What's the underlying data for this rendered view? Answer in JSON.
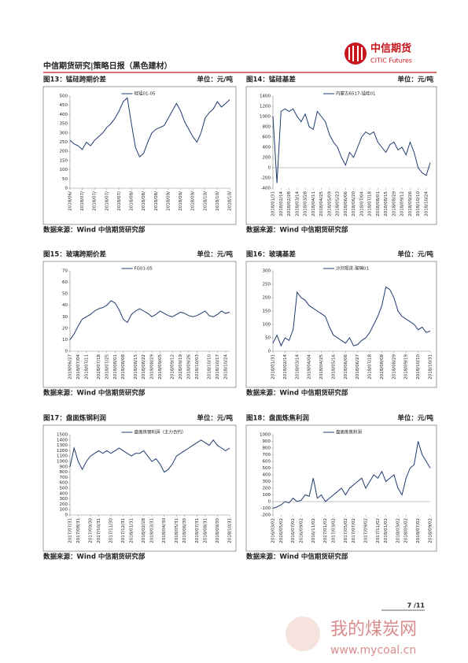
{
  "header": {
    "title": "中信期货研究|策略日报（黑色建材）",
    "logo_cn": "中信期货",
    "logo_en": "CITIC Futures"
  },
  "page_number": "7 /11",
  "watermark": {
    "name": "我的煤炭网",
    "url": "www.mycoal.cn"
  },
  "chart_data": [
    {
      "type": "line",
      "title": "图13：锰硅跨期价差",
      "unit": "单位：元/吨",
      "source": "数据来源：Wind  中信期货研究部",
      "series": [
        {
          "name": "硅锰01-05",
          "color": "#1f3a6e",
          "values": [
            260,
            240,
            230,
            210,
            250,
            230,
            260,
            280,
            300,
            330,
            350,
            380,
            420,
            470,
            490,
            350,
            220,
            170,
            190,
            250,
            300,
            320,
            330,
            340,
            380,
            420,
            460,
            420,
            360,
            320,
            280,
            250,
            300,
            380,
            410,
            430,
            470,
            440,
            460,
            480
          ]
        }
      ],
      "ylim": [
        0,
        500
      ],
      "yticks": [
        0,
        50,
        100,
        150,
        200,
        250,
        300,
        350,
        400,
        450,
        500
      ],
      "xlim": [
        0,
        39
      ],
      "xticks": [
        {
          "value": 0,
          "label": "2018/06/"
        },
        {
          "value": 3,
          "label": "2018/07/"
        },
        {
          "value": 6,
          "label": "2018/07/"
        },
        {
          "value": 9,
          "label": "2018/07/"
        },
        {
          "value": 12,
          "label": "2018/07/"
        },
        {
          "value": 15,
          "label": "2018/08/"
        },
        {
          "value": 18,
          "label": "2018/08/"
        },
        {
          "value": 21,
          "label": "2018/08/"
        },
        {
          "value": 24,
          "label": "2018/09/"
        },
        {
          "value": 27,
          "label": "2018/09/"
        },
        {
          "value": 30,
          "label": "2018/09/"
        },
        {
          "value": 33,
          "label": "2018/10/"
        },
        {
          "value": 36,
          "label": "2018/10/"
        },
        {
          "value": 39,
          "label": "2018/10/"
        }
      ]
    },
    {
      "type": "line",
      "title": "图14：锰硅基差",
      "unit": "单位：元/吨",
      "source": "数据来源：Wind  中信期货研究部",
      "series": [
        {
          "name": "内蒙古6517-锰硅01",
          "color": "#1f3a6e",
          "values": [
            1000,
            -300,
            1100,
            1150,
            1100,
            1150,
            1000,
            900,
            1050,
            800,
            750,
            1100,
            1000,
            900,
            650,
            500,
            400,
            200,
            50,
            300,
            200,
            400,
            600,
            700,
            650,
            700,
            500,
            400,
            300,
            450,
            500,
            350,
            400,
            250,
            500,
            300,
            0,
            -100,
            -150,
            100
          ]
        }
      ],
      "ylim": [
        -400,
        1400
      ],
      "yticks": [
        -400,
        -200,
        0,
        200,
        400,
        600,
        800,
        1000,
        1200,
        1400
      ],
      "xlim": [
        0,
        39
      ],
      "xticks": [
        {
          "value": 0,
          "label": "2018/01/31"
        },
        {
          "value": 2,
          "label": "2018/02/14"
        },
        {
          "value": 4,
          "label": "2018/02/28"
        },
        {
          "value": 6,
          "label": "2018/03/14"
        },
        {
          "value": 8,
          "label": "2018/03/28"
        },
        {
          "value": 10,
          "label": "2018/04/11"
        },
        {
          "value": 12,
          "label": "2018/04/25"
        },
        {
          "value": 14,
          "label": "2018/05/09"
        },
        {
          "value": 16,
          "label": "2018/05/23"
        },
        {
          "value": 18,
          "label": "2018/06/06"
        },
        {
          "value": 20,
          "label": "2018/06/20"
        },
        {
          "value": 22,
          "label": "2018/07/04"
        },
        {
          "value": 24,
          "label": "2018/07/18"
        },
        {
          "value": 26,
          "label": "2018/08/01"
        },
        {
          "value": 28,
          "label": "2018/08/15"
        },
        {
          "value": 30,
          "label": "2018/08/29"
        },
        {
          "value": 32,
          "label": "2018/09/12"
        },
        {
          "value": 34,
          "label": "2018/09/26"
        },
        {
          "value": 36,
          "label": "2018/10/10"
        },
        {
          "value": 38,
          "label": "2018/10/24"
        }
      ]
    },
    {
      "type": "line",
      "title": "图15：玻璃跨期价差",
      "unit": "单位：元/吨",
      "source": "数据来源：Wind  中信期货研究部",
      "series": [
        {
          "name": "FG01-05",
          "color": "#1f3a6e",
          "values": [
            10,
            15,
            22,
            28,
            30,
            32,
            35,
            37,
            38,
            40,
            44,
            42,
            36,
            28,
            25,
            32,
            35,
            37,
            35,
            33,
            30,
            32,
            35,
            33,
            31,
            30,
            32,
            34,
            33,
            31,
            30,
            31,
            33,
            35,
            31,
            30,
            32,
            35,
            33,
            34
          ]
        }
      ],
      "ylim": [
        0,
        70
      ],
      "yticks": [
        0,
        10,
        20,
        30,
        40,
        50,
        60,
        70
      ],
      "xlim": [
        0,
        39
      ],
      "xticks": [
        {
          "value": 0,
          "label": "2018/06/27"
        },
        {
          "value": 2,
          "label": "2018/07/04"
        },
        {
          "value": 4,
          "label": "2018/07/11"
        },
        {
          "value": 7,
          "label": "2018/07/18"
        },
        {
          "value": 9,
          "label": "2018/07/25"
        },
        {
          "value": 11,
          "label": "2018/08/01"
        },
        {
          "value": 13,
          "label": "2018/08/08"
        },
        {
          "value": 16,
          "label": "2018/08/15"
        },
        {
          "value": 18,
          "label": "2018/08/22"
        },
        {
          "value": 20,
          "label": "2018/08/29"
        },
        {
          "value": 22,
          "label": "2018/09/05"
        },
        {
          "value": 25,
          "label": "2018/09/12"
        },
        {
          "value": 27,
          "label": "2018/09/19"
        },
        {
          "value": 29,
          "label": "2018/09/26"
        },
        {
          "value": 31,
          "label": "2018/10/03"
        },
        {
          "value": 34,
          "label": "2018/10/10"
        },
        {
          "value": 36,
          "label": "2018/10/17"
        },
        {
          "value": 38,
          "label": "2018/10/24"
        }
      ]
    },
    {
      "type": "line",
      "title": "图16：玻璃基差",
      "unit": "单位：元/吨",
      "source": "数据来源：Wind  中信期货研究部",
      "series": [
        {
          "name": "沙河现货-玻璃01",
          "color": "#1f3a6e",
          "values": [
            30,
            60,
            20,
            50,
            40,
            80,
            220,
            200,
            190,
            170,
            160,
            150,
            140,
            130,
            90,
            60,
            50,
            40,
            30,
            50,
            20,
            25,
            40,
            50,
            70,
            100,
            130,
            170,
            240,
            230,
            200,
            150,
            130,
            120,
            110,
            100,
            80,
            90,
            70,
            75
          ]
        }
      ],
      "ylim": [
        0,
        300
      ],
      "yticks": [
        0,
        50,
        100,
        150,
        200,
        250,
        300
      ],
      "xlim": [
        0,
        39
      ],
      "xticks": [
        {
          "value": 0,
          "label": "2018/01/31"
        },
        {
          "value": 3,
          "label": "2018/02/14"
        },
        {
          "value": 6,
          "label": "2018/03/14"
        },
        {
          "value": 9,
          "label": "2018/04/04"
        },
        {
          "value": 12,
          "label": "2018/04/25"
        },
        {
          "value": 15,
          "label": "2018/05/16"
        },
        {
          "value": 18,
          "label": "2018/06/06"
        },
        {
          "value": 21,
          "label": "2018/06/27"
        },
        {
          "value": 24,
          "label": "2018/07/18"
        },
        {
          "value": 27,
          "label": "2018/08/08"
        },
        {
          "value": 30,
          "label": "2018/08/29"
        },
        {
          "value": 33,
          "label": "2018/09/19"
        },
        {
          "value": 36,
          "label": "2018/10/10"
        },
        {
          "value": 39,
          "label": "2018/10/31"
        }
      ]
    },
    {
      "type": "line",
      "title": "图17：盘面炼钢利润",
      "unit": "单位：元/吨",
      "source": "数据来源：Wind  中信期货研究部",
      "series": [
        {
          "name": "盘面炼钢利润（主力合约）",
          "color": "#1f3a6e",
          "values": [
            900,
            1250,
            1000,
            850,
            1000,
            1100,
            1150,
            1200,
            1150,
            1200,
            1150,
            1200,
            1250,
            1200,
            1150,
            1100,
            1150,
            1150,
            1200,
            1100,
            1000,
            1050,
            950,
            800,
            850,
            950,
            1100,
            1150,
            1200,
            1250,
            1300,
            1350,
            1400,
            1350,
            1300,
            1400,
            1300,
            1250,
            1200,
            1250
          ]
        }
      ],
      "ylim": [
        0,
        1500
      ],
      "yticks": [
        0,
        100,
        200,
        300,
        400,
        500,
        600,
        700,
        800,
        900,
        1000,
        1100,
        1200,
        1300,
        1400,
        1500
      ],
      "xlim": [
        0,
        39
      ],
      "xticks": [
        {
          "value": 0,
          "label": "2017/07/31"
        },
        {
          "value": 2,
          "label": "2017/08/31"
        },
        {
          "value": 5,
          "label": "2017/09/30"
        },
        {
          "value": 7,
          "label": "2017/10/31"
        },
        {
          "value": 10,
          "label": "2017/11/30"
        },
        {
          "value": 13,
          "label": "2017/12/31"
        },
        {
          "value": 15,
          "label": "2018/01/31"
        },
        {
          "value": 18,
          "label": "2018/02/28"
        },
        {
          "value": 20,
          "label": "2018/03/31"
        },
        {
          "value": 23,
          "label": "2018/04/30"
        },
        {
          "value": 26,
          "label": "2018/05/31"
        },
        {
          "value": 28,
          "label": "2018/06/30"
        },
        {
          "value": 31,
          "label": "2018/07/31"
        },
        {
          "value": 33,
          "label": "2018/08/31"
        },
        {
          "value": 36,
          "label": "2018/09/30"
        },
        {
          "value": 39,
          "label": "2018/10/31"
        }
      ]
    },
    {
      "type": "line",
      "title": "图18：盘面炼焦利润",
      "unit": "单位：元/吨",
      "source": "数据来源：Wind  中信期货研究部",
      "series": [
        {
          "name": "盘面炼焦利润",
          "color": "#1f3a6e",
          "values": [
            -100,
            -80,
            -50,
            0,
            -20,
            50,
            0,
            20,
            100,
            80,
            350,
            50,
            100,
            0,
            50,
            100,
            150,
            200,
            100,
            200,
            250,
            300,
            350,
            200,
            300,
            400,
            350,
            450,
            300,
            350,
            400,
            200,
            100,
            350,
            500,
            550,
            900,
            700,
            600,
            500
          ]
        }
      ],
      "ylim": [
        -200,
        1000
      ],
      "yticks": [
        -200,
        -100,
        0,
        100,
        200,
        300,
        400,
        500,
        600,
        700,
        800,
        900,
        1000
      ],
      "xlim": [
        0,
        39
      ],
      "xticks": [
        {
          "value": 0,
          "label": "2016/03/02"
        },
        {
          "value": 2,
          "label": "2016/05/02"
        },
        {
          "value": 5,
          "label": "2016/07/02"
        },
        {
          "value": 7,
          "label": "2016/09/02"
        },
        {
          "value": 10,
          "label": "2016/11/02"
        },
        {
          "value": 13,
          "label": "2017/01/02"
        },
        {
          "value": 15,
          "label": "2017/03/02"
        },
        {
          "value": 18,
          "label": "2017/05/02"
        },
        {
          "value": 20,
          "label": "2017/07/02"
        },
        {
          "value": 23,
          "label": "2017/09/02"
        },
        {
          "value": 26,
          "label": "2017/11/02"
        },
        {
          "value": 28,
          "label": "2018/01/02"
        },
        {
          "value": 31,
          "label": "2018/03/02"
        },
        {
          "value": 33,
          "label": "2018/05/02"
        },
        {
          "value": 36,
          "label": "2018/07/02"
        },
        {
          "value": 39,
          "label": "2018/09/02"
        }
      ]
    }
  ]
}
